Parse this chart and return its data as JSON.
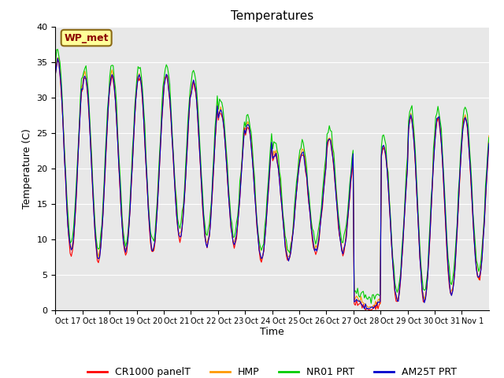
{
  "title": "Temperatures",
  "ylabel": "Temperature (C)",
  "xlabel": "Time",
  "annotation": "WP_met",
  "ylim": [
    0,
    40
  ],
  "yticks": [
    0,
    5,
    10,
    15,
    20,
    25,
    30,
    35,
    40
  ],
  "x_labels": [
    "Oct 17",
    "Oct 18",
    "Oct 19",
    "Oct 20",
    "Oct 21",
    "Oct 22",
    "Oct 23",
    "Oct 24",
    "Oct 25",
    "Oct 26",
    "Oct 27",
    "Oct 28",
    "Oct 29",
    "Oct 30",
    "Oct 31",
    "Nov 1"
  ],
  "series": [
    {
      "label": "CR1000 panelT",
      "color": "#ff0000"
    },
    {
      "label": "HMP",
      "color": "#ff9900"
    },
    {
      "label": "NR01 PRT",
      "color": "#00cc00"
    },
    {
      "label": "AM25T PRT",
      "color": "#0000cc"
    }
  ],
  "background_color": "#e8e8e8",
  "figure_color": "#ffffff",
  "title_fontsize": 11,
  "axis_fontsize": 9,
  "legend_fontsize": 9,
  "n_days": 16,
  "daily_max": [
    35,
    33,
    33,
    33,
    33,
    32,
    28,
    26,
    22,
    22,
    24,
    1,
    23,
    27,
    27,
    27
  ],
  "daily_min": [
    8,
    7,
    8,
    8,
    10,
    9,
    9,
    7,
    7,
    8,
    8,
    0,
    1,
    1,
    2,
    4
  ]
}
